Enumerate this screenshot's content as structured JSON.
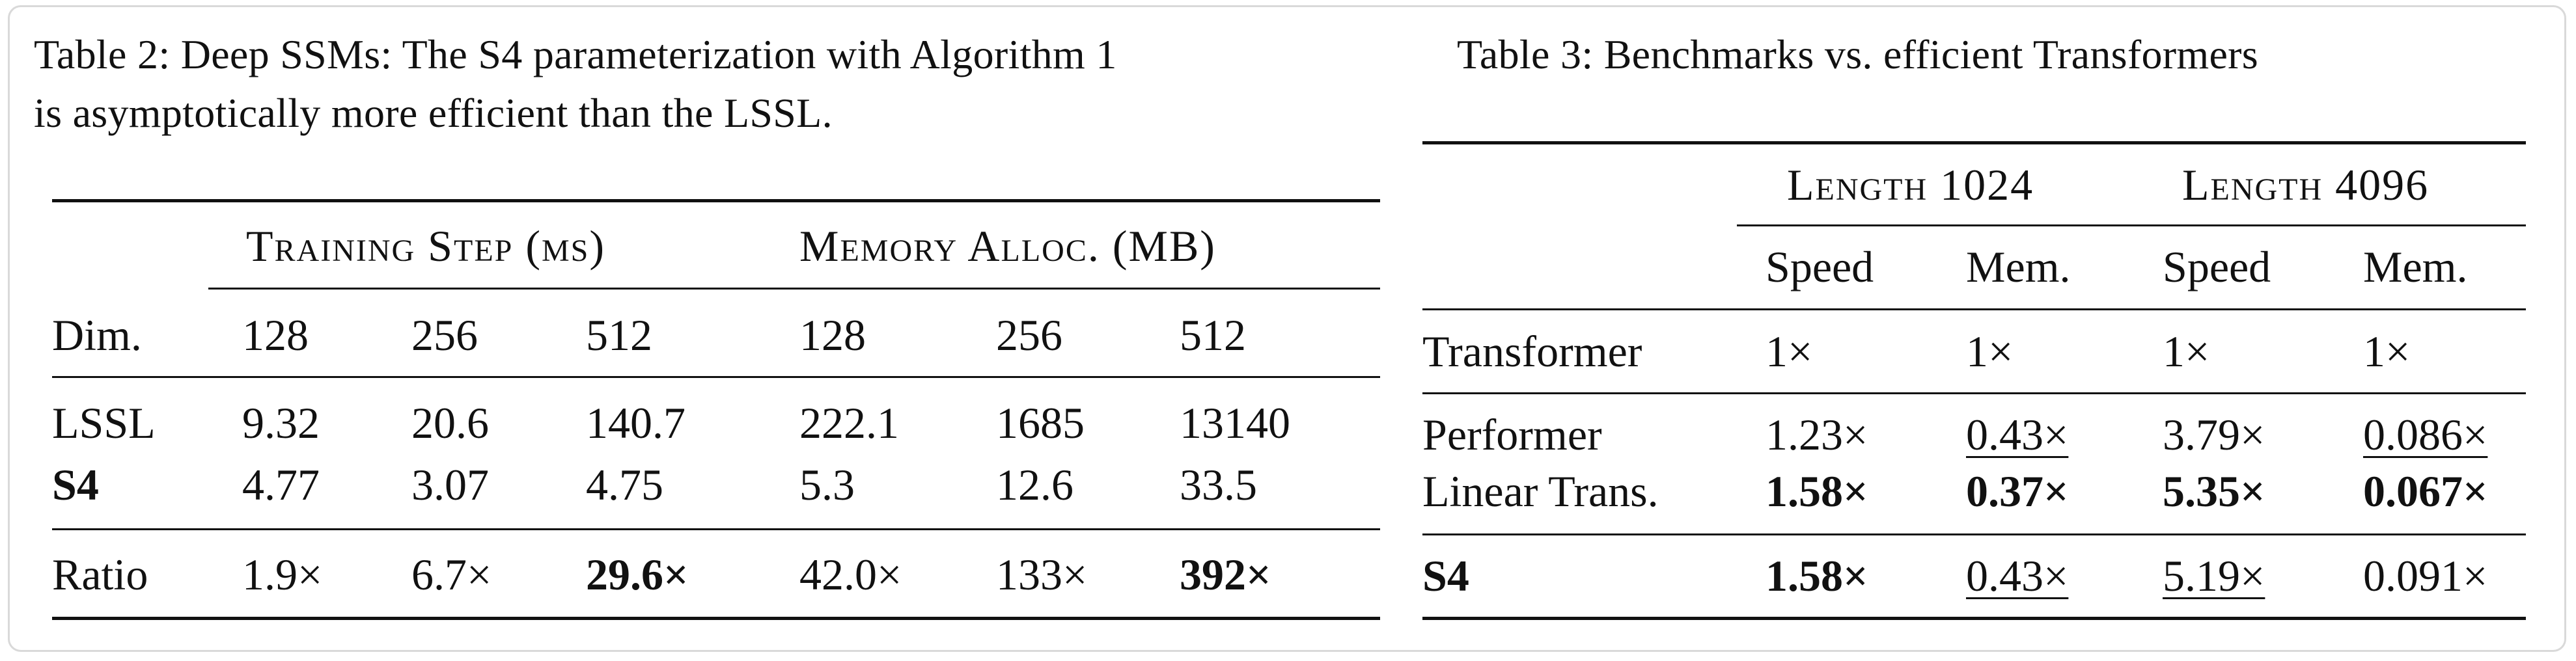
{
  "table2": {
    "caption_line1": "Table 2: Deep SSMs: The S4 parameterization with Algorithm 1",
    "caption_line2": "is asymptotically more efficient than the LSSL.",
    "group1": "Training Step (ms)",
    "group2": "Memory Alloc. (MB)",
    "dim_label": "Dim.",
    "dims": [
      "128",
      "256",
      "512",
      "128",
      "256",
      "512"
    ],
    "rows": [
      {
        "label": "LSSL",
        "values": [
          "9.32",
          "20.6",
          "140.7",
          "222.1",
          "1685",
          "13140"
        ]
      },
      {
        "label": "S4",
        "values": [
          "4.77",
          "3.07",
          "4.75",
          "5.3",
          "12.6",
          "33.5"
        ]
      },
      {
        "label": "Ratio",
        "values": [
          "1.9×",
          "6.7×",
          "29.6×",
          "42.0×",
          "133×",
          "392×"
        ]
      }
    ]
  },
  "table3": {
    "caption": "Table 3: Benchmarks vs. efficient Transformers",
    "group1": "Length 1024",
    "group2": "Length 4096",
    "subheaders": [
      "Speed",
      "Mem.",
      "Speed",
      "Mem."
    ],
    "rows": [
      {
        "label": "Transformer",
        "values": [
          "1×",
          "1×",
          "1×",
          "1×"
        ]
      },
      {
        "label": "Performer",
        "values": [
          "1.23×",
          "0.43×",
          "3.79×",
          "0.086×"
        ]
      },
      {
        "label": "Linear Trans.",
        "values": [
          "1.58×",
          "0.37×",
          "5.35×",
          "0.067×"
        ]
      },
      {
        "label": "S4",
        "values": [
          "1.58×",
          "0.43×",
          "5.19×",
          "0.091×"
        ]
      }
    ]
  }
}
